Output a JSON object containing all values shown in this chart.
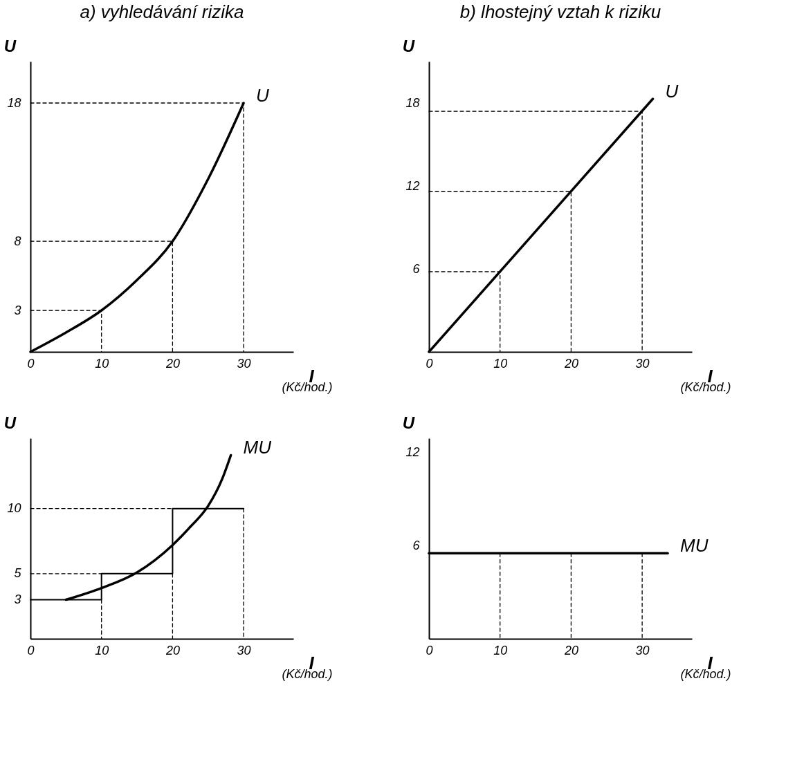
{
  "chart_data": [
    {
      "type": "line",
      "title": "a) vyhledávání rizika",
      "xlabel": "I",
      "ylabel": "U",
      "annotations": [
        "(Kč/hod.)"
      ],
      "xlim": [
        0,
        37
      ],
      "ylim": [
        0,
        21
      ],
      "xticks": [
        0,
        10,
        20,
        30
      ],
      "yticks": [
        3,
        8,
        18
      ],
      "marker": "none",
      "series": [
        {
          "name": "U",
          "line_style": "solid",
          "color": "#000000",
          "x": [
            0,
            5,
            10,
            15,
            20,
            25,
            30
          ],
          "values": [
            0,
            1.4,
            3,
            5.2,
            8,
            12.5,
            18
          ]
        },
        {
          "type": "line",
          "line_style": "dashed",
          "color": "#000000",
          "x": [
            0,
            10,
            10
          ],
          "values": [
            3,
            3,
            0
          ]
        },
        {
          "type": "line",
          "line_style": "dashed",
          "color": "#000000",
          "x": [
            0,
            20,
            20
          ],
          "values": [
            8,
            8,
            0
          ]
        },
        {
          "type": "line",
          "line_style": "dashed",
          "color": "#000000",
          "x": [
            0,
            30,
            30
          ],
          "values": [
            18,
            18,
            0
          ]
        }
      ]
    },
    {
      "type": "line",
      "title": "b) lhostejný vztah k riziku",
      "xlabel": "I",
      "ylabel": "U",
      "annotations": [
        "(Kč/hod.)"
      ],
      "xlim": [
        0,
        37
      ],
      "ylim": [
        0,
        21
      ],
      "xticks": [
        0,
        10,
        20,
        30
      ],
      "yticks": [
        6,
        12,
        18
      ],
      "marker": "none",
      "series": [
        {
          "name": "U",
          "line_style": "solid",
          "color": "#000000",
          "x": [
            0,
            31.5
          ],
          "values": [
            0,
            18.3
          ]
        },
        {
          "type": "line",
          "line_style": "dashed",
          "color": "#000000",
          "x": [
            0,
            10,
            10
          ],
          "values": [
            5.8,
            5.8,
            0
          ]
        },
        {
          "type": "line",
          "line_style": "dashed",
          "color": "#000000",
          "x": [
            0,
            20,
            20
          ],
          "values": [
            11.6,
            11.6,
            0
          ]
        },
        {
          "type": "line",
          "line_style": "dashed",
          "color": "#000000",
          "x": [
            0,
            30,
            30
          ],
          "values": [
            17.4,
            17.4,
            0
          ]
        }
      ]
    },
    {
      "type": "line",
      "xlabel": "I",
      "ylabel": "U",
      "annotations": [
        "(Kč/hod.)"
      ],
      "xlim": [
        0,
        37
      ],
      "ylim": [
        0,
        15.4
      ],
      "xticks": [
        0,
        10,
        20,
        30
      ],
      "yticks": [
        3,
        5,
        10
      ],
      "marker": "none",
      "series": [
        {
          "type": "step",
          "line_style": "solid",
          "color": "#000000",
          "x": [
            0,
            10,
            20,
            30
          ],
          "values": [
            3,
            5,
            10,
            10
          ]
        },
        {
          "name": "MU",
          "line_style": "solid",
          "color": "#000000",
          "x": [
            5,
            10,
            15,
            20,
            22.5,
            25,
            27,
            28.2
          ],
          "values": [
            3,
            3.9,
            5.1,
            7.2,
            8.6,
            10.2,
            12.3,
            14.1
          ]
        },
        {
          "type": "line",
          "line_style": "dashed",
          "color": "#000000",
          "x": [
            0,
            10
          ],
          "values": [
            5,
            5
          ]
        },
        {
          "type": "line",
          "line_style": "dashed",
          "color": "#000000",
          "x": [
            0,
            20
          ],
          "values": [
            10,
            10
          ]
        },
        {
          "type": "line",
          "line_style": "dashed",
          "color": "#000000",
          "x": [
            10,
            10
          ],
          "values": [
            3,
            0
          ]
        },
        {
          "type": "line",
          "line_style": "dashed",
          "color": "#000000",
          "x": [
            20,
            20
          ],
          "values": [
            5,
            0
          ]
        },
        {
          "type": "line",
          "line_style": "dashed",
          "color": "#000000",
          "x": [
            30,
            30
          ],
          "values": [
            10,
            0
          ]
        }
      ]
    },
    {
      "type": "line",
      "xlabel": "I",
      "ylabel": "U",
      "annotations": [
        "(Kč/hod.)"
      ],
      "xlim": [
        0,
        37
      ],
      "ylim": [
        0,
        12.9
      ],
      "xticks": [
        0,
        10,
        20,
        30
      ],
      "yticks": [
        6,
        12
      ],
      "marker": "none",
      "series": [
        {
          "name": "MU",
          "line_style": "solid",
          "color": "#000000",
          "x": [
            0,
            33.6
          ],
          "values": [
            5.5,
            5.5
          ]
        },
        {
          "type": "line",
          "line_style": "dashed",
          "color": "#000000",
          "x": [
            10,
            10
          ],
          "values": [
            5.5,
            0
          ]
        },
        {
          "type": "line",
          "line_style": "dashed",
          "color": "#000000",
          "x": [
            20,
            20
          ],
          "values": [
            5.5,
            0
          ]
        },
        {
          "type": "line",
          "line_style": "dashed",
          "color": "#000000",
          "x": [
            30,
            30
          ],
          "values": [
            5.5,
            0
          ]
        }
      ]
    }
  ]
}
